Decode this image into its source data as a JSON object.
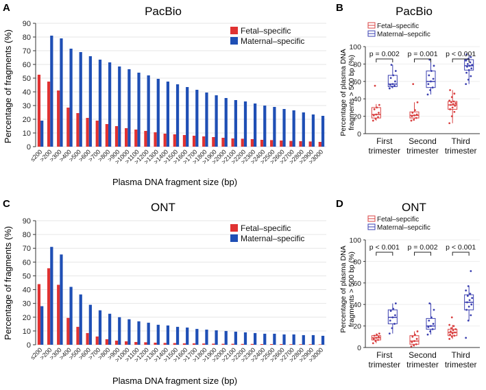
{
  "colors": {
    "fetal": "#e03232",
    "maternal": "#1f4fb5",
    "box_fetal": "#d94040",
    "box_maternal": "#3a3fb0"
  },
  "chart_data": [
    {
      "panel": "A",
      "type": "bar",
      "title": "PacBio",
      "xlabel": "Plasma DNA fragment size (bp)",
      "ylabel": "Percentage of fragments (%)",
      "ylim": [
        0,
        90
      ],
      "yticks": [
        0,
        10,
        20,
        30,
        40,
        50,
        60,
        70,
        80,
        90
      ],
      "grid": true,
      "legend_position": "top-right",
      "categories": [
        "≤200",
        ">200",
        ">300",
        ">400",
        ">500",
        ">600",
        ">700",
        ">800",
        ">900",
        ">1000",
        ">1100",
        ">1200",
        ">1300",
        ">1400",
        ">1500",
        ">1600",
        ">1700",
        ">1800",
        ">1900",
        ">2000",
        ">2100",
        ">2200",
        ">2300",
        ">2400",
        ">2500",
        ">2600",
        ">2700",
        ">2800",
        ">2900",
        ">3000"
      ],
      "series": [
        {
          "name": "Fetal–specific",
          "values": [
            52.5,
            47.5,
            41,
            28.5,
            24.5,
            21,
            19,
            16.5,
            15,
            13.5,
            12.5,
            11.5,
            10.5,
            9.5,
            9,
            8.5,
            8,
            7.5,
            7,
            6.5,
            6,
            5.8,
            5.5,
            5,
            4.8,
            4.5,
            4.2,
            4,
            3.8,
            3.5
          ]
        },
        {
          "name": "Maternal–specific",
          "values": [
            19,
            81,
            79,
            71.5,
            69,
            66,
            63.5,
            61.5,
            58.5,
            56.5,
            54,
            52,
            49.5,
            47.5,
            45.5,
            43.5,
            41.5,
            39.5,
            37.5,
            35.5,
            34,
            33,
            31.5,
            30,
            29,
            27.5,
            26.5,
            25,
            23.5,
            22.5
          ]
        }
      ]
    },
    {
      "panel": "B",
      "type": "box",
      "title": "PacBio",
      "ylabel_lines": [
        "Percentage of plasma DNA",
        "fragments > 500 bp (%)"
      ],
      "ylim": [
        0,
        100
      ],
      "yticks": [
        0,
        20,
        40,
        60,
        80,
        100
      ],
      "groups": [
        [
          "First",
          "trimester"
        ],
        [
          "Second",
          "trimester"
        ],
        [
          "Third",
          "trimester"
        ]
      ],
      "pvalues": [
        "p = 0.002",
        "p = 0.001",
        "p < 0.001"
      ],
      "legend": [
        "Fetal–specific",
        "Maternal–sepcific"
      ],
      "series": [
        {
          "name": "Fetal–specific",
          "boxes": [
            {
              "min": 15,
              "q1": 18,
              "median": 22,
              "q3": 30,
              "max": 34,
              "points": [
                15,
                17,
                19,
                21,
                22,
                24,
                28,
                30,
                33,
                55
              ]
            },
            {
              "min": 15,
              "q1": 18,
              "median": 21,
              "q3": 25,
              "max": 36,
              "points": [
                15,
                16,
                18,
                20,
                21,
                22,
                24,
                27,
                36,
                57
              ]
            },
            {
              "min": 12,
              "q1": 28,
              "median": 33,
              "q3": 37,
              "max": 50,
              "points": [
                12,
                20,
                25,
                28,
                30,
                32,
                33,
                34,
                35,
                36,
                37,
                38,
                42,
                46,
                50
              ]
            }
          ]
        },
        {
          "name": "Maternal–sepcific",
          "boxes": [
            {
              "min": 52,
              "q1": 54,
              "median": 57,
              "q3": 67,
              "max": 79,
              "points": [
                52,
                54,
                55,
                56,
                57,
                60,
                64,
                67,
                72,
                79
              ]
            },
            {
              "min": 45,
              "q1": 53,
              "median": 60,
              "q3": 72,
              "max": 85,
              "points": [
                45,
                50,
                53,
                57,
                60,
                63,
                67,
                72,
                78,
                85
              ]
            },
            {
              "min": 57,
              "q1": 73,
              "median": 78,
              "q3": 85,
              "max": 91,
              "points": [
                57,
                62,
                66,
                70,
                73,
                75,
                77,
                78,
                79,
                80,
                82,
                84,
                86,
                88,
                91
              ]
            }
          ]
        }
      ]
    },
    {
      "panel": "C",
      "type": "bar",
      "title": "ONT",
      "xlabel": "Plasma DNA fragment size (bp)",
      "ylabel": "Percentage of fragments (%)",
      "ylim": [
        0,
        90
      ],
      "yticks": [
        0,
        10,
        20,
        30,
        40,
        50,
        60,
        70,
        80,
        90
      ],
      "grid": true,
      "legend_position": "top-right",
      "categories": [
        "≤200",
        ">200",
        ">300",
        ">400",
        ">500",
        ">600",
        ">700",
        ">800",
        ">900",
        ">1000",
        ">1100",
        ">1200",
        ">1300",
        ">1400",
        ">1500",
        ">1600",
        ">1700",
        ">1800",
        ">1900",
        ">2000",
        ">2100",
        ">2200",
        ">2300",
        ">2400",
        ">2500",
        ">2600",
        ">2700",
        ">2800",
        ">2900",
        ">3000"
      ],
      "series": [
        {
          "name": "Fetal–specific",
          "values": [
            44,
            55.5,
            43.5,
            19.5,
            13,
            8.5,
            6,
            4,
            3,
            2.5,
            2,
            1.8,
            1.5,
            1.3,
            1.2,
            1,
            1,
            0.9,
            0.8,
            0.7,
            0.7,
            0.6,
            0.6,
            0.5,
            0.5,
            0.5,
            0.4,
            0.4,
            0.4,
            0.3
          ]
        },
        {
          "name": "Maternal–specific",
          "values": [
            28,
            71,
            65.5,
            42,
            36.5,
            29,
            25,
            22.5,
            20,
            18.5,
            17,
            16,
            14.5,
            14,
            13,
            12.5,
            11.5,
            11,
            10.5,
            10,
            9.5,
            9,
            8.5,
            8,
            8,
            7.5,
            7.5,
            7,
            7,
            6.5
          ]
        }
      ]
    },
    {
      "panel": "D",
      "type": "box",
      "title": "ONT",
      "ylabel_lines": [
        "Percentage of plasma DNA",
        "fragments > 500 bp (%)"
      ],
      "ylim": [
        0,
        100
      ],
      "yticks": [
        0,
        20,
        40,
        60,
        80,
        100
      ],
      "groups": [
        [
          "First",
          "trimester"
        ],
        [
          "Second",
          "trimester"
        ],
        [
          "Third",
          "trimester"
        ]
      ],
      "pvalues": [
        "p < 0.001",
        "p = 0.002",
        "p < 0.001"
      ],
      "legend": [
        "Fetal–sepcific",
        "Maternal–sepcific"
      ],
      "series": [
        {
          "name": "Fetal–sepcific",
          "boxes": [
            {
              "min": 4,
              "q1": 7,
              "median": 9,
              "q3": 11,
              "max": 13,
              "points": [
                4,
                6,
                7,
                8,
                9,
                10,
                11,
                12,
                13
              ]
            },
            {
              "min": 1,
              "q1": 3,
              "median": 6,
              "q3": 11,
              "max": 15,
              "points": [
                1,
                2,
                3,
                5,
                6,
                8,
                10,
                12,
                15
              ]
            },
            {
              "min": 8,
              "q1": 11,
              "median": 14,
              "q3": 17,
              "max": 21,
              "points": [
                8,
                10,
                11,
                12,
                13,
                14,
                15,
                16,
                17,
                18,
                20,
                21,
                28
              ]
            }
          ]
        },
        {
          "name": "Maternal–sepcific",
          "boxes": [
            {
              "min": 13,
              "q1": 22,
              "median": 28,
              "q3": 35,
              "max": 41,
              "points": [
                13,
                18,
                22,
                25,
                28,
                30,
                34,
                36,
                41
              ]
            },
            {
              "min": 12,
              "q1": 17,
              "median": 20,
              "q3": 27,
              "max": 41,
              "points": [
                12,
                15,
                17,
                19,
                20,
                22,
                25,
                28,
                35,
                41
              ]
            },
            {
              "min": 25,
              "q1": 35,
              "median": 42,
              "q3": 49,
              "max": 57,
              "points": [
                9,
                25,
                30,
                35,
                38,
                40,
                42,
                44,
                46,
                48,
                50,
                53,
                57,
                71
              ]
            }
          ]
        }
      ]
    }
  ]
}
